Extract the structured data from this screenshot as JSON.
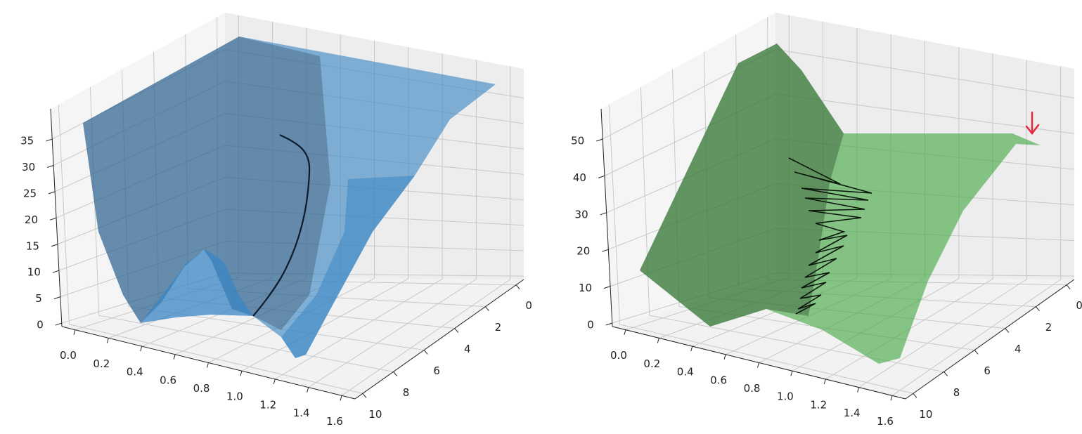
{
  "chart_data": [
    {
      "type": "surface3d",
      "color": "#3a86c4",
      "xlim": [
        -0.08,
        1.68
      ],
      "xticks": [
        {
          "value": 0,
          "label": "0.0"
        },
        0.2,
        0.4,
        0.6,
        0.8,
        {
          "value": 1,
          "label": "1.0"
        },
        1.2,
        1.4,
        1.6
      ],
      "ylim": [
        -0.5,
        10.5
      ],
      "yticks": [
        0,
        2,
        4,
        6,
        8,
        10
      ],
      "zlim": [
        -0.66,
        40.75
      ],
      "zticks": [
        0,
        5,
        10,
        15,
        20,
        25,
        30,
        35
      ]
    },
    {
      "type": "surface3d",
      "color": "#4aab4a",
      "xlim": [
        -0.08,
        1.68
      ],
      "xticks": [
        {
          "value": 0,
          "label": "0.0"
        },
        0.2,
        0.4,
        0.6,
        0.8,
        {
          "value": 1,
          "label": "1.0"
        },
        1.2,
        1.4,
        1.6
      ],
      "ylim": [
        -0.5,
        10.5
      ],
      "yticks": [
        0,
        2,
        4,
        6,
        8,
        10
      ],
      "zlim": [
        -0.95,
        58.2
      ],
      "zticks": [
        0,
        10,
        20,
        30,
        40,
        50
      ]
    }
  ]
}
